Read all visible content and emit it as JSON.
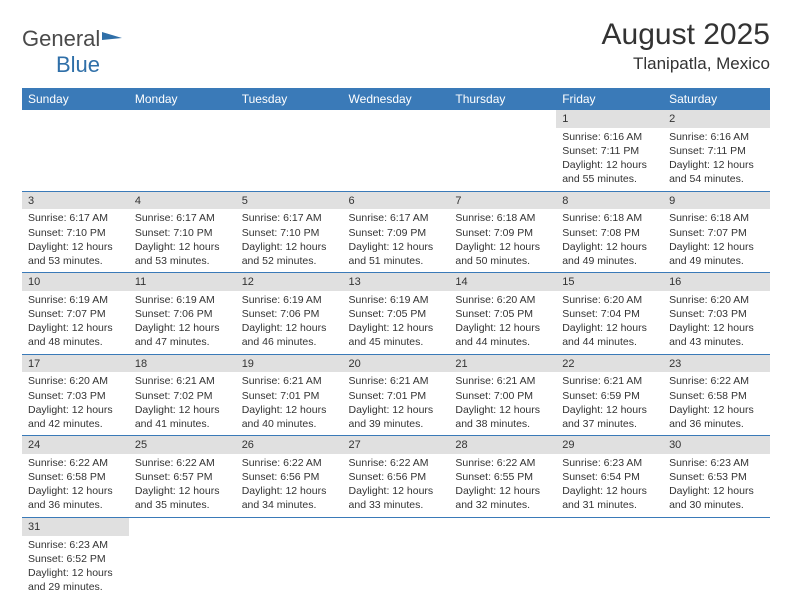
{
  "logo": {
    "text1": "General",
    "text2": "Blue"
  },
  "title": "August 2025",
  "location": "Tlanipatla, Mexico",
  "colors": {
    "header_bg": "#3a7ab8",
    "header_fg": "#ffffff",
    "daynum_bg": "#e0e0e0",
    "border": "#3a7ab8",
    "logo_gray": "#4a4a4a",
    "logo_blue": "#2f6fa8"
  },
  "weekdays": [
    "Sunday",
    "Monday",
    "Tuesday",
    "Wednesday",
    "Thursday",
    "Friday",
    "Saturday"
  ],
  "weeks": [
    [
      null,
      null,
      null,
      null,
      null,
      {
        "n": "1",
        "sr": "6:16 AM",
        "ss": "7:11 PM",
        "dl": "12 hours and 55 minutes."
      },
      {
        "n": "2",
        "sr": "6:16 AM",
        "ss": "7:11 PM",
        "dl": "12 hours and 54 minutes."
      }
    ],
    [
      {
        "n": "3",
        "sr": "6:17 AM",
        "ss": "7:10 PM",
        "dl": "12 hours and 53 minutes."
      },
      {
        "n": "4",
        "sr": "6:17 AM",
        "ss": "7:10 PM",
        "dl": "12 hours and 53 minutes."
      },
      {
        "n": "5",
        "sr": "6:17 AM",
        "ss": "7:10 PM",
        "dl": "12 hours and 52 minutes."
      },
      {
        "n": "6",
        "sr": "6:17 AM",
        "ss": "7:09 PM",
        "dl": "12 hours and 51 minutes."
      },
      {
        "n": "7",
        "sr": "6:18 AM",
        "ss": "7:09 PM",
        "dl": "12 hours and 50 minutes."
      },
      {
        "n": "8",
        "sr": "6:18 AM",
        "ss": "7:08 PM",
        "dl": "12 hours and 49 minutes."
      },
      {
        "n": "9",
        "sr": "6:18 AM",
        "ss": "7:07 PM",
        "dl": "12 hours and 49 minutes."
      }
    ],
    [
      {
        "n": "10",
        "sr": "6:19 AM",
        "ss": "7:07 PM",
        "dl": "12 hours and 48 minutes."
      },
      {
        "n": "11",
        "sr": "6:19 AM",
        "ss": "7:06 PM",
        "dl": "12 hours and 47 minutes."
      },
      {
        "n": "12",
        "sr": "6:19 AM",
        "ss": "7:06 PM",
        "dl": "12 hours and 46 minutes."
      },
      {
        "n": "13",
        "sr": "6:19 AM",
        "ss": "7:05 PM",
        "dl": "12 hours and 45 minutes."
      },
      {
        "n": "14",
        "sr": "6:20 AM",
        "ss": "7:05 PM",
        "dl": "12 hours and 44 minutes."
      },
      {
        "n": "15",
        "sr": "6:20 AM",
        "ss": "7:04 PM",
        "dl": "12 hours and 44 minutes."
      },
      {
        "n": "16",
        "sr": "6:20 AM",
        "ss": "7:03 PM",
        "dl": "12 hours and 43 minutes."
      }
    ],
    [
      {
        "n": "17",
        "sr": "6:20 AM",
        "ss": "7:03 PM",
        "dl": "12 hours and 42 minutes."
      },
      {
        "n": "18",
        "sr": "6:21 AM",
        "ss": "7:02 PM",
        "dl": "12 hours and 41 minutes."
      },
      {
        "n": "19",
        "sr": "6:21 AM",
        "ss": "7:01 PM",
        "dl": "12 hours and 40 minutes."
      },
      {
        "n": "20",
        "sr": "6:21 AM",
        "ss": "7:01 PM",
        "dl": "12 hours and 39 minutes."
      },
      {
        "n": "21",
        "sr": "6:21 AM",
        "ss": "7:00 PM",
        "dl": "12 hours and 38 minutes."
      },
      {
        "n": "22",
        "sr": "6:21 AM",
        "ss": "6:59 PM",
        "dl": "12 hours and 37 minutes."
      },
      {
        "n": "23",
        "sr": "6:22 AM",
        "ss": "6:58 PM",
        "dl": "12 hours and 36 minutes."
      }
    ],
    [
      {
        "n": "24",
        "sr": "6:22 AM",
        "ss": "6:58 PM",
        "dl": "12 hours and 36 minutes."
      },
      {
        "n": "25",
        "sr": "6:22 AM",
        "ss": "6:57 PM",
        "dl": "12 hours and 35 minutes."
      },
      {
        "n": "26",
        "sr": "6:22 AM",
        "ss": "6:56 PM",
        "dl": "12 hours and 34 minutes."
      },
      {
        "n": "27",
        "sr": "6:22 AM",
        "ss": "6:56 PM",
        "dl": "12 hours and 33 minutes."
      },
      {
        "n": "28",
        "sr": "6:22 AM",
        "ss": "6:55 PM",
        "dl": "12 hours and 32 minutes."
      },
      {
        "n": "29",
        "sr": "6:23 AM",
        "ss": "6:54 PM",
        "dl": "12 hours and 31 minutes."
      },
      {
        "n": "30",
        "sr": "6:23 AM",
        "ss": "6:53 PM",
        "dl": "12 hours and 30 minutes."
      }
    ],
    [
      {
        "n": "31",
        "sr": "6:23 AM",
        "ss": "6:52 PM",
        "dl": "12 hours and 29 minutes."
      },
      null,
      null,
      null,
      null,
      null,
      null
    ]
  ],
  "labels": {
    "sunrise": "Sunrise:",
    "sunset": "Sunset:",
    "daylight": "Daylight:"
  }
}
